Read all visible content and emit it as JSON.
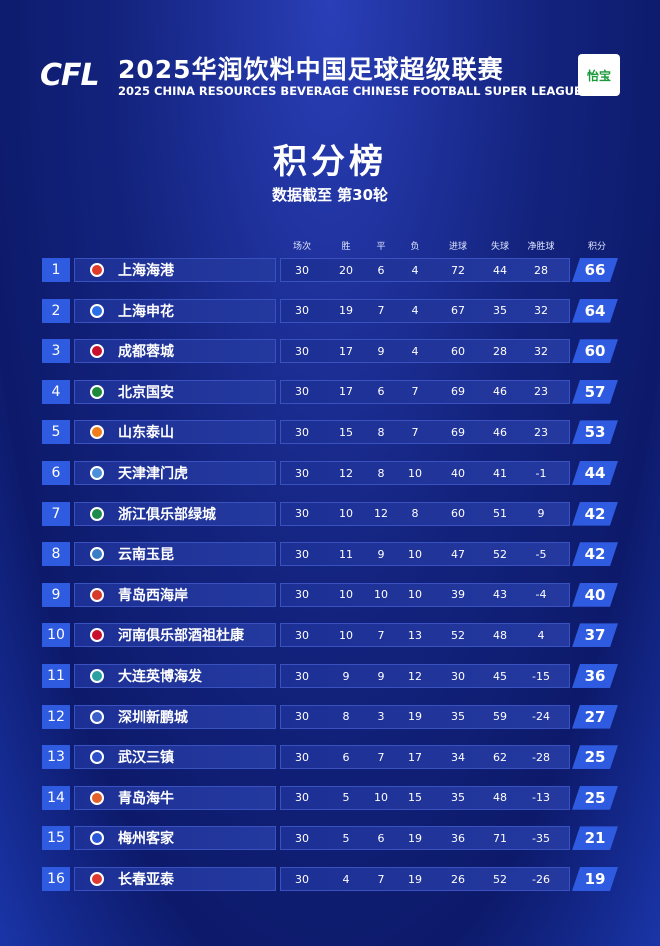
{
  "header": {
    "logo": "CFL",
    "title_cn": "2025华润饮料中国足球超级联赛",
    "title_en": "2025 CHINA RESOURCES BEVERAGE CHINESE FOOTBALL SUPER LEAGUE",
    "sponsor": "怡宝"
  },
  "title": "积分榜",
  "subtitle": "数据截至 第30轮",
  "table": {
    "columns": [
      "场次",
      "胜",
      "平",
      "负",
      "进球",
      "失球",
      "净胜球",
      "积分"
    ],
    "rows": [
      [
        1,
        "上海海港",
        30,
        20,
        6,
        4,
        72,
        44,
        28,
        66
      ],
      [
        2,
        "上海申花",
        30,
        19,
        7,
        4,
        67,
        35,
        32,
        64
      ],
      [
        3,
        "成都蓉城",
        30,
        17,
        9,
        4,
        60,
        28,
        32,
        60
      ],
      [
        4,
        "北京国安",
        30,
        17,
        6,
        7,
        69,
        46,
        23,
        57
      ],
      [
        5,
        "山东泰山",
        30,
        15,
        8,
        7,
        69,
        46,
        23,
        53
      ],
      [
        6,
        "天津津门虎",
        30,
        12,
        8,
        10,
        40,
        41,
        -1,
        44
      ],
      [
        7,
        "浙江俱乐部绿城",
        30,
        10,
        12,
        8,
        60,
        51,
        9,
        42
      ],
      [
        8,
        "云南玉昆",
        30,
        11,
        9,
        10,
        47,
        52,
        -5,
        42
      ],
      [
        9,
        "青岛西海岸",
        30,
        10,
        10,
        10,
        39,
        43,
        -4,
        40
      ],
      [
        10,
        "河南俱乐部酒祖杜康",
        30,
        10,
        7,
        13,
        52,
        48,
        4,
        37
      ],
      [
        11,
        "大连英博海发",
        30,
        9,
        9,
        12,
        30,
        45,
        -15,
        36
      ],
      [
        12,
        "深圳新鹏城",
        30,
        8,
        3,
        19,
        35,
        59,
        -24,
        27
      ],
      [
        13,
        "武汉三镇",
        30,
        6,
        7,
        17,
        34,
        62,
        -28,
        25
      ],
      [
        14,
        "青岛海牛",
        30,
        5,
        10,
        15,
        35,
        48,
        -13,
        25
      ],
      [
        15,
        "梅州客家",
        30,
        5,
        6,
        19,
        36,
        71,
        -35,
        21
      ],
      [
        16,
        "长春亚泰",
        30,
        4,
        7,
        19,
        26,
        52,
        -26,
        19
      ]
    ]
  }
}
